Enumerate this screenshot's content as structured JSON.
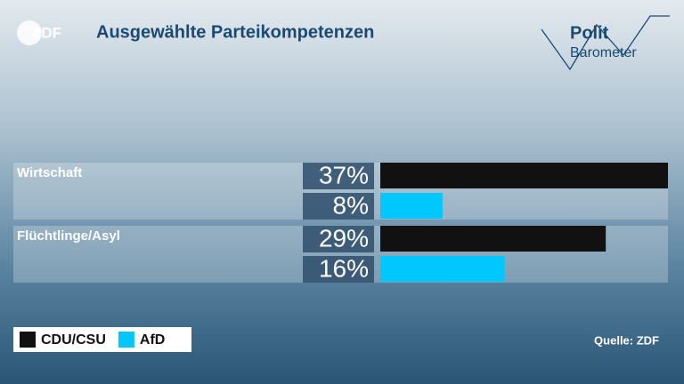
{
  "header": {
    "logo": "ZDF",
    "brand_top": "Polit",
    "brand_bottom": "Barometer"
  },
  "chart_data": {
    "type": "hbar",
    "title": "Ausgewählte Parteikompetenzen",
    "source": "Quelle: ZDF",
    "categories": [
      "Wirtschaft",
      "Flüchtlinge/Asyl"
    ],
    "series": [
      {
        "name": "CDU/CSU",
        "color": "#111111",
        "values": [
          37,
          29
        ],
        "value_labels": [
          "37%",
          "29%"
        ]
      },
      {
        "name": "AfD",
        "color": "#00c8ff",
        "values": [
          8,
          16
        ],
        "value_labels": [
          "8%",
          "16%"
        ]
      }
    ]
  }
}
